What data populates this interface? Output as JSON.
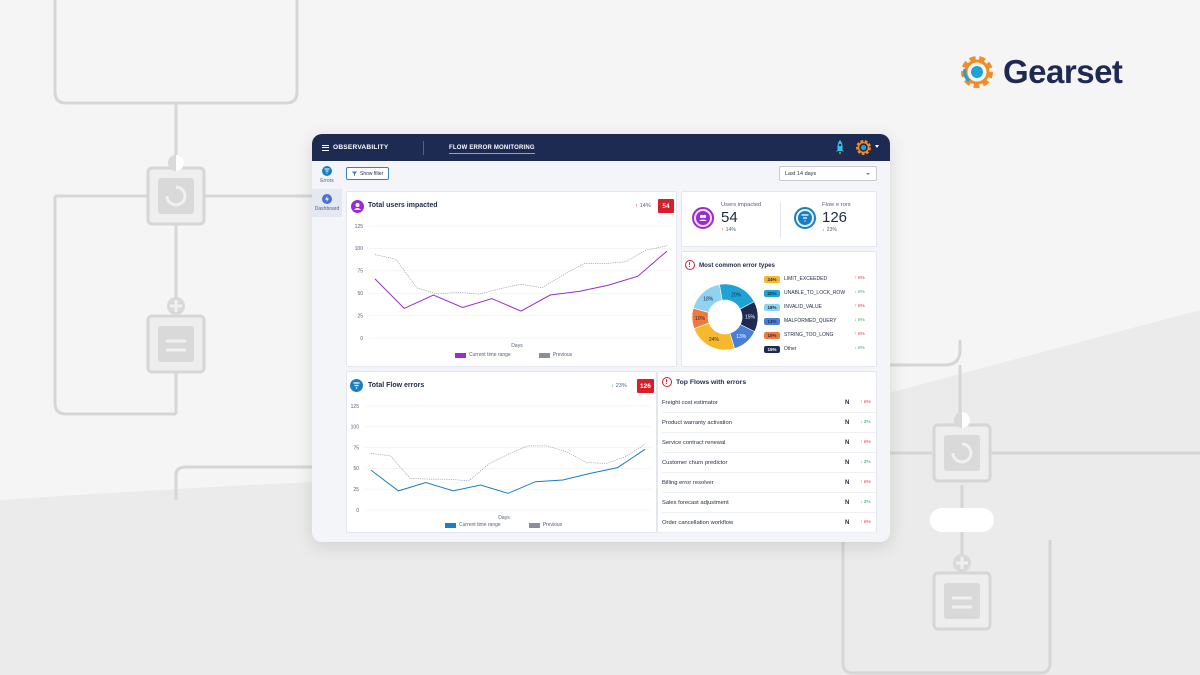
{
  "brand": {
    "name": "Gearset"
  },
  "topbar": {
    "menu_label": "OBSERVABILITY",
    "tab_label": "FLOW ERROR MONITORING"
  },
  "nav": {
    "items": [
      {
        "label": "Errors",
        "icon": "flow-icon"
      },
      {
        "label": "Dashboard",
        "icon": "bolt-icon"
      }
    ]
  },
  "filter": {
    "show_filter_label": "Show filter",
    "date_range": "Last 14 days"
  },
  "users_card": {
    "title": "Total users impacted",
    "change": "14%",
    "count": "54",
    "xlabel": "Days",
    "legend_current": "Current time range",
    "legend_previous": "Previous"
  },
  "flow_errors_card": {
    "title": "Total Flow errors",
    "change": "23%",
    "count": "126",
    "xlabel": "Days",
    "legend_current": "Current time range",
    "legend_previous": "Previous"
  },
  "stats": {
    "users_label": "Users impacted",
    "users_value": "54",
    "users_change": "14%",
    "flow_label": "Flow e rors",
    "flow_value": "126",
    "flow_change": "23%"
  },
  "error_types": {
    "title": "Most common error types",
    "items": [
      {
        "pct": "24%",
        "name": "LIMIT_EXCEEDED",
        "trend": "n%",
        "color": "#f5b82e",
        "dir": "up"
      },
      {
        "pct": "20%",
        "name": "UNABLE_TO_LOCK_ROW",
        "trend": "n%",
        "color": "#1ea3d6",
        "dir": "down"
      },
      {
        "pct": "18%",
        "name": "INVALID_VALUE",
        "trend": "n%",
        "color": "#8fd3f0",
        "dir": "up"
      },
      {
        "pct": "13%",
        "name": "MALFORMED_QUERY",
        "trend": "n%",
        "color": "#4a7fd6",
        "dir": "down"
      },
      {
        "pct": "10%",
        "name": "STRING_TOO_LONG",
        "trend": "n%",
        "color": "#f07a3a",
        "dir": "up"
      },
      {
        "pct": "15%",
        "name": "Other",
        "trend": "n%",
        "color": "#1d2a52",
        "dir": "down"
      }
    ],
    "donut_labels": [
      "20%",
      "15%",
      "13%",
      "24%",
      "10%",
      "18%"
    ]
  },
  "top_flows": {
    "title": "Top Flows with errors",
    "rows": [
      {
        "name": "Freight cost estimator",
        "n": "N",
        "trend": "n%",
        "dir": "up"
      },
      {
        "name": "Product warranty activation",
        "n": "N",
        "trend": "3%",
        "dir": "down"
      },
      {
        "name": "Service contract renewal",
        "n": "N",
        "trend": "n%",
        "dir": "up"
      },
      {
        "name": "Customer churn predictor",
        "n": "N",
        "trend": "3%",
        "dir": "down"
      },
      {
        "name": "Billing error resolver",
        "n": "N",
        "trend": "n%",
        "dir": "up"
      },
      {
        "name": "Sales forecast adjustment",
        "n": "N",
        "trend": "3%",
        "dir": "down"
      },
      {
        "name": "Order cancellation workflow",
        "n": "N",
        "trend": "n%",
        "dir": "up"
      }
    ]
  },
  "chart_data": [
    {
      "type": "line",
      "title": "Total users impacted",
      "xlabel": "Days",
      "ylabel": "",
      "ylim": [
        0,
        125
      ],
      "yticks": [
        "0",
        "25",
        "50",
        "75",
        "100",
        "125"
      ],
      "series": [
        {
          "name": "Current time range",
          "color": "#9b2bd1",
          "values": [
            66,
            33,
            48,
            34,
            44,
            30,
            48,
            52,
            59,
            69,
            97
          ]
        },
        {
          "name": "Previous",
          "color": "#8a8f99",
          "values": [
            93,
            88,
            56,
            49,
            51,
            49,
            55,
            60,
            56,
            70,
            83,
            83,
            85,
            98,
            103
          ]
        }
      ]
    },
    {
      "type": "line",
      "title": "Total Flow errors",
      "xlabel": "Days",
      "ylabel": "",
      "ylim": [
        0,
        125
      ],
      "yticks": [
        "0",
        "25",
        "50",
        "75",
        "100",
        "125"
      ],
      "series": [
        {
          "name": "Current time range",
          "color": "#1a7fc0",
          "values": [
            48,
            23,
            33,
            23,
            30,
            20,
            34,
            36,
            44,
            51,
            73
          ]
        },
        {
          "name": "Previous",
          "color": "#8a8f99",
          "values": [
            68,
            65,
            38,
            37,
            37,
            35,
            55,
            67,
            77,
            77,
            70,
            57,
            56,
            64,
            79
          ]
        }
      ]
    },
    {
      "type": "pie",
      "title": "Most common error types",
      "labels": [
        "LIMIT_EXCEEDED",
        "UNABLE_TO_LOCK_ROW",
        "INVALID_VALUE",
        "MALFORMED_QUERY",
        "STRING_TOO_LONG",
        "Other"
      ],
      "values": [
        24,
        20,
        18,
        13,
        10,
        15
      ]
    }
  ]
}
